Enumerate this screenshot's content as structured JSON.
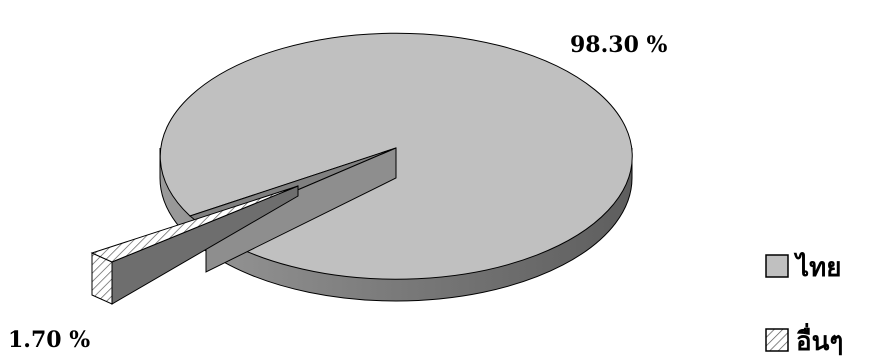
{
  "chart_data": {
    "type": "pie",
    "title": "",
    "slices": [
      {
        "label": "ไทย",
        "value": 98.3,
        "display": "98.30 %",
        "color": "#c0c0c0",
        "pattern": "solid"
      },
      {
        "label": "อื่นๆ",
        "value": 1.7,
        "display": "1.70 %",
        "color": "#ffffff",
        "pattern": "diagonal-hatch"
      }
    ],
    "style": "3d-exploded",
    "legend_position": "right"
  }
}
